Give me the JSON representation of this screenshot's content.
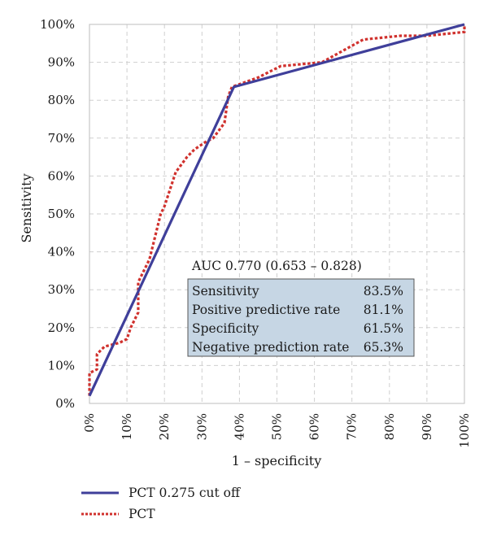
{
  "chart_data": {
    "type": "line",
    "xlabel": "1 – specificity",
    "ylabel": "Sensitivity",
    "xlim": [
      0,
      100
    ],
    "ylim": [
      0,
      100
    ],
    "x_ticks": [
      "0%",
      "10%",
      "20%",
      "30%",
      "40%",
      "50%",
      "60%",
      "70%",
      "80%",
      "90%",
      "100%"
    ],
    "y_ticks": [
      "0%",
      "10%",
      "20%",
      "30%",
      "40%",
      "50%",
      "60%",
      "70%",
      "80%",
      "90%",
      "100%"
    ],
    "grid": true,
    "legend_position": "bottom-left",
    "series": [
      {
        "name": "PCT 0.275 cut off",
        "color": "#3f3f9a",
        "style": "solid",
        "points": [
          [
            0,
            2
          ],
          [
            38.5,
            83.5
          ],
          [
            100,
            100
          ]
        ]
      },
      {
        "name": "PCT",
        "color": "#d0312d",
        "style": "dotted",
        "points": [
          [
            0,
            2
          ],
          [
            0,
            8
          ],
          [
            2,
            9
          ],
          [
            2,
            13
          ],
          [
            4,
            15
          ],
          [
            8,
            16
          ],
          [
            10,
            17
          ],
          [
            11,
            20
          ],
          [
            13,
            24
          ],
          [
            13,
            32
          ],
          [
            16,
            38
          ],
          [
            19,
            50
          ],
          [
            20,
            52
          ],
          [
            23,
            61
          ],
          [
            26,
            65
          ],
          [
            28,
            67
          ],
          [
            31,
            69
          ],
          [
            33,
            70
          ],
          [
            36,
            74
          ],
          [
            37,
            81
          ],
          [
            38,
            83.5
          ],
          [
            45,
            86
          ],
          [
            51,
            89
          ],
          [
            62,
            90
          ],
          [
            73,
            96
          ],
          [
            83,
            97
          ],
          [
            90,
            97
          ],
          [
            100,
            98
          ],
          [
            100,
            100
          ]
        ]
      }
    ],
    "annotation": {
      "auc": "AUC 0.770 (0.653 – 0.828)",
      "rows": [
        {
          "label": "Sensitivity",
          "value": "83.5%"
        },
        {
          "label": "Positive predictive rate",
          "value": "81.1%"
        },
        {
          "label": "Specificity",
          "value": "61.5%"
        },
        {
          "label": "Negative prediction rate",
          "value": "65.3%"
        }
      ],
      "box_color": "#c6d6e4"
    }
  }
}
